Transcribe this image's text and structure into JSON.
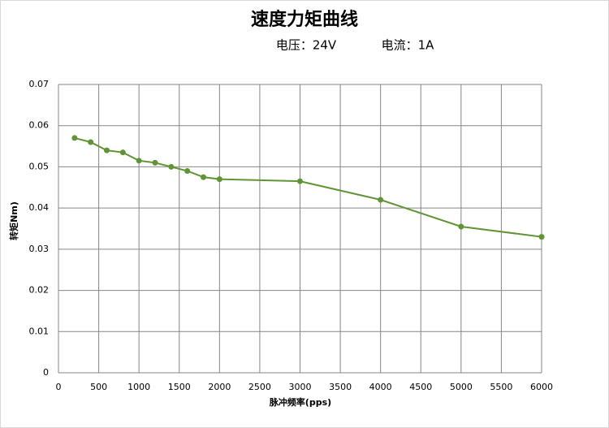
{
  "chart_data": {
    "type": "line",
    "title": "速度力矩曲线",
    "annotations": [
      "电压：24V",
      "电流：1A"
    ],
    "x_label": "脉冲频率(pps)",
    "y_label": "转矩Nm)",
    "x": [
      200,
      400,
      600,
      800,
      1000,
      1200,
      1400,
      1600,
      1800,
      2000,
      3000,
      4000,
      5000,
      6000
    ],
    "series": [
      {
        "color": "#609434",
        "values": [
          0.057,
          0.056,
          0.054,
          0.0535,
          0.0515,
          0.051,
          0.05,
          0.049,
          0.0475,
          0.047,
          0.0465,
          0.042,
          0.0355,
          0.033
        ]
      }
    ],
    "xlim": [
      0,
      6000
    ],
    "xticks": [
      0,
      500,
      1000,
      1500,
      2000,
      2500,
      3000,
      3500,
      4000,
      4500,
      5000,
      5500,
      6000
    ],
    "ylim": [
      0,
      0.07
    ],
    "yticks": [
      0,
      0.01,
      0.02,
      0.03,
      0.04,
      0.05,
      0.06,
      0.07
    ],
    "grid": true
  }
}
